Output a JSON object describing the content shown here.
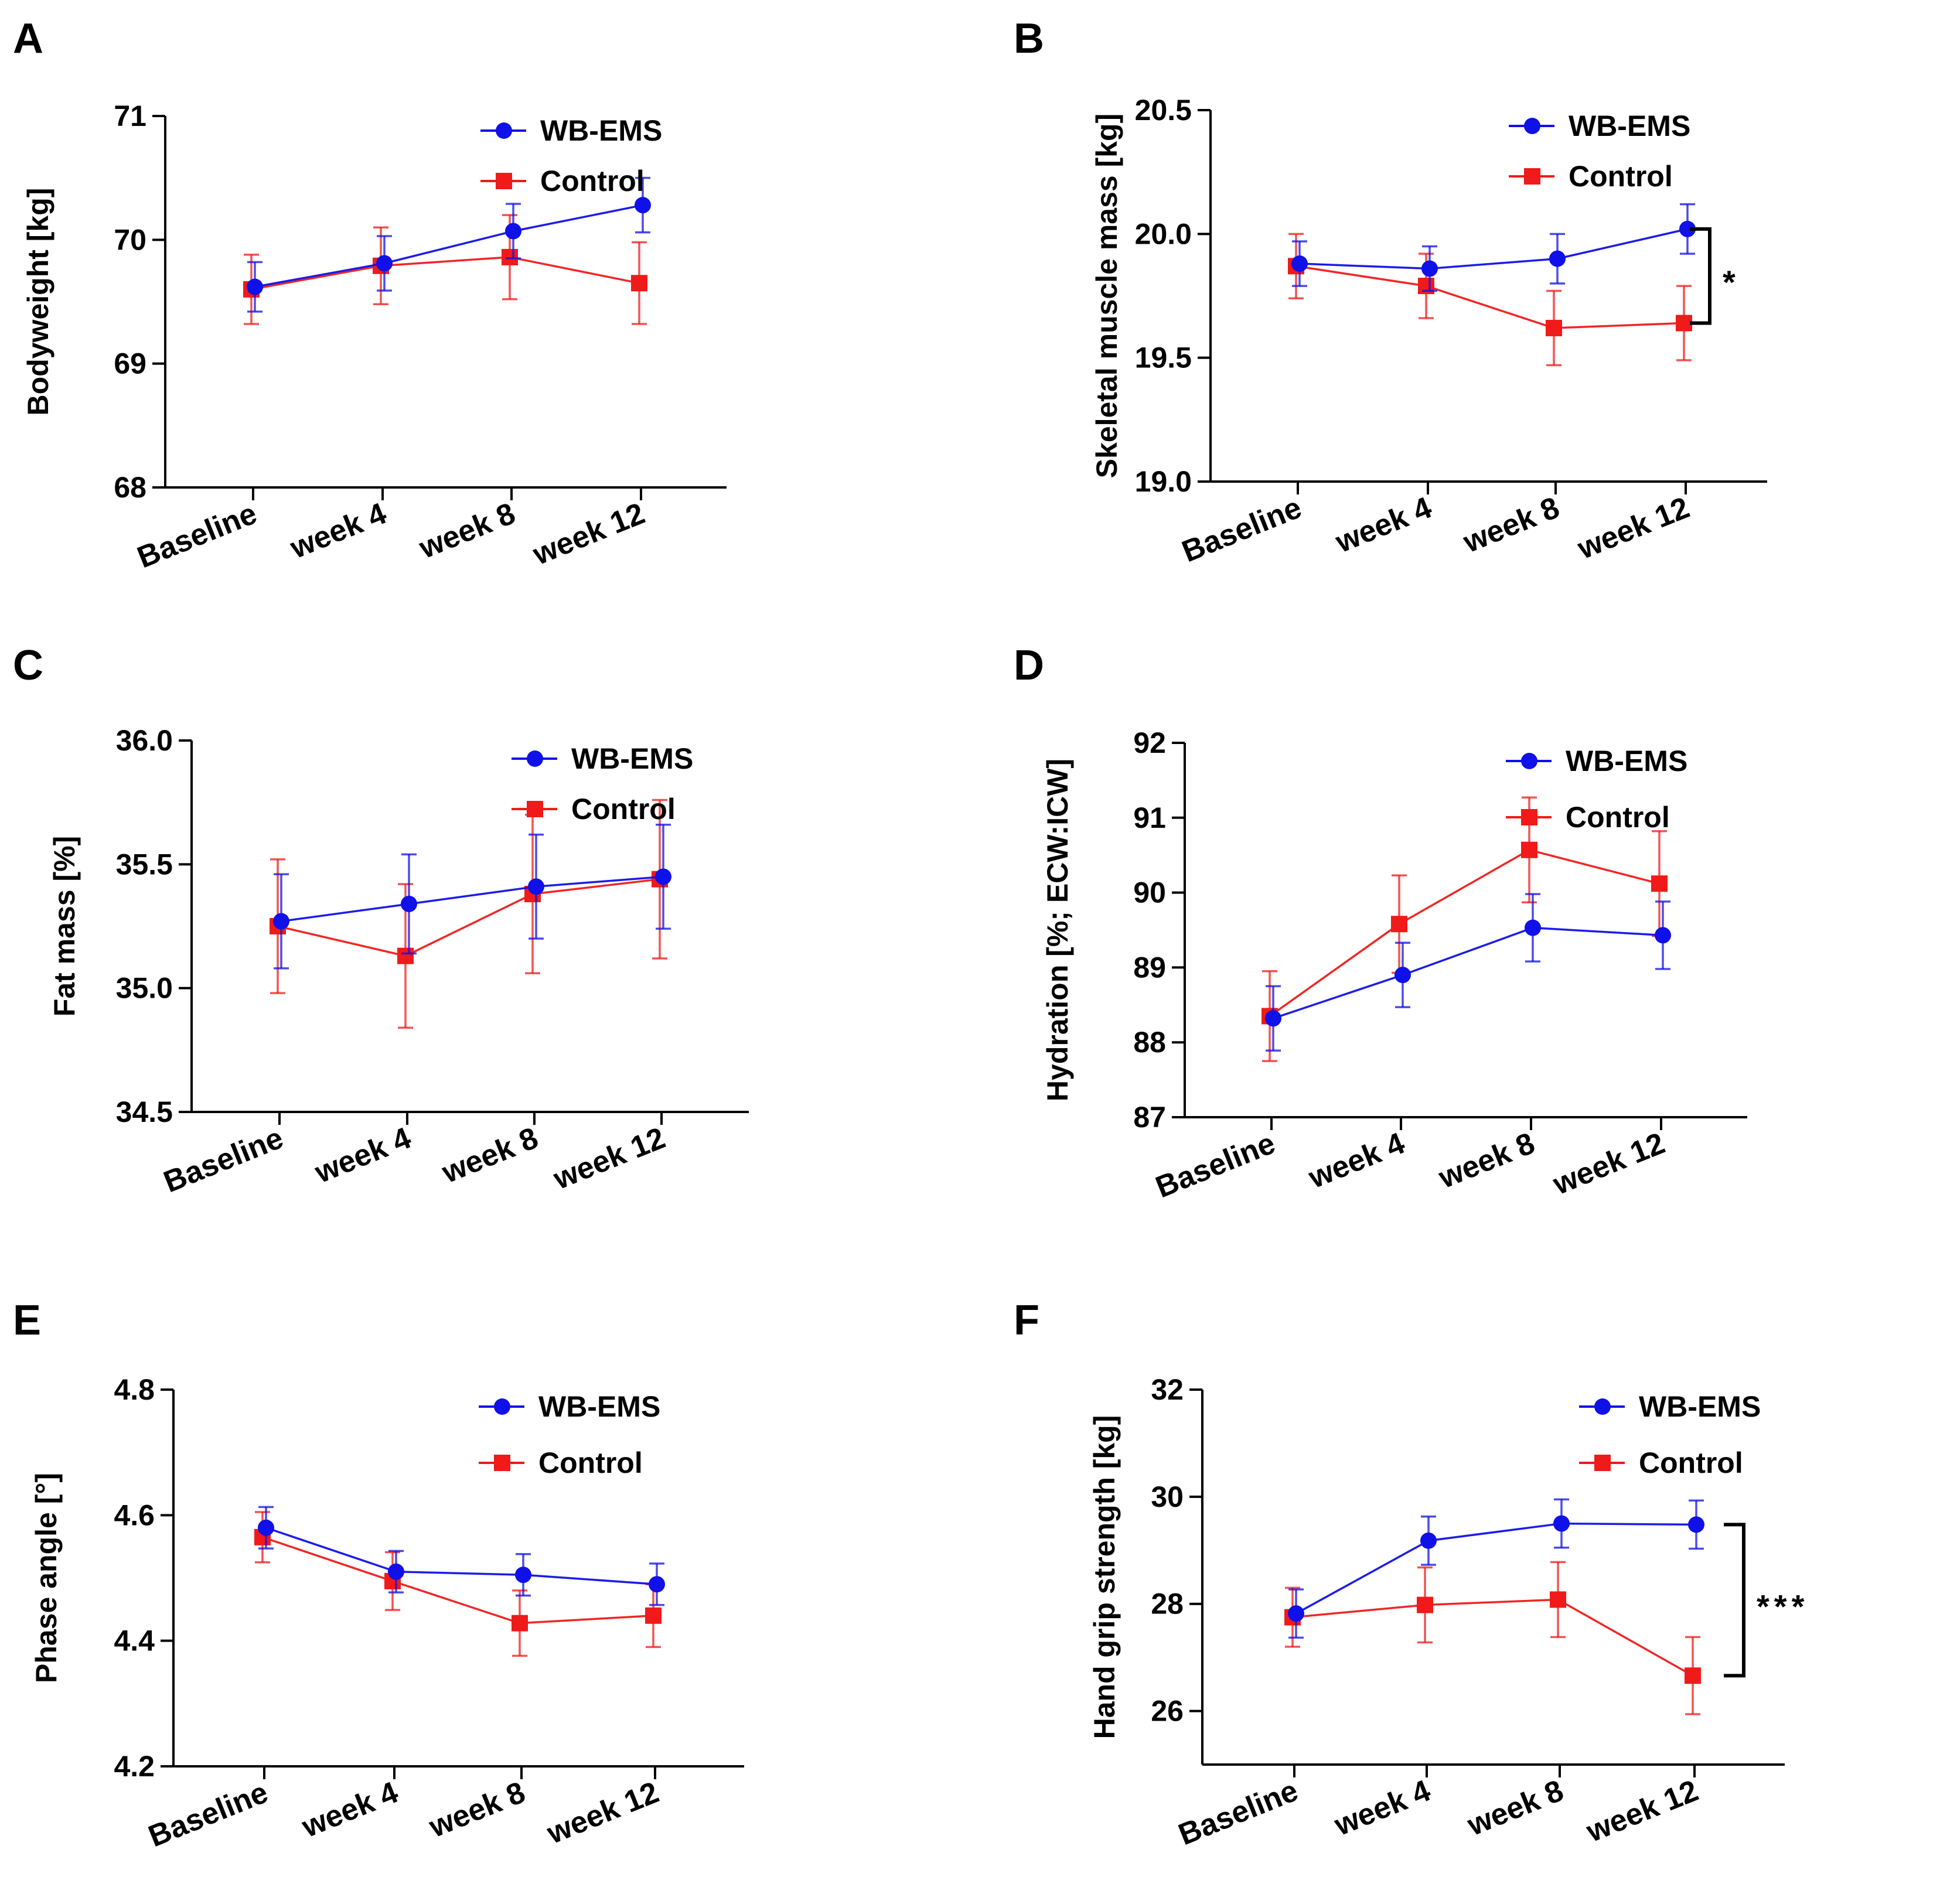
{
  "legend_symbols": {
    "WB-EMS": "circle",
    "Control": "square"
  },
  "colors": {
    "wbems": "#1010e8",
    "control": "#f01a1a",
    "axis": "#000000"
  },
  "chart_data": [
    {
      "panel": "A",
      "type": "line",
      "ylabel": "Bodyweight [kg]",
      "categories": [
        "Baseline",
        "week 4",
        "week 8",
        "week 12"
      ],
      "ylim": [
        68,
        71
      ],
      "yticks": [
        "68",
        "69",
        "70",
        "71"
      ],
      "legend_position": "top-right",
      "series": [
        {
          "name": "WB-EMS",
          "values": [
            69.62,
            69.81,
            70.07,
            70.28
          ],
          "error": [
            0.2,
            0.22,
            0.22,
            0.22
          ]
        },
        {
          "name": "Control",
          "values": [
            69.6,
            69.79,
            69.86,
            69.65
          ],
          "error": [
            0.28,
            0.31,
            0.34,
            0.33
          ]
        }
      ],
      "annotation": null
    },
    {
      "panel": "B",
      "type": "line",
      "ylabel": "Skeletal muscle mass [kg]",
      "categories": [
        "Baseline",
        "week 4",
        "week 8",
        "week 12"
      ],
      "ylim": [
        19.0,
        20.5
      ],
      "yticks": [
        "19.0",
        "19.5",
        "20.0",
        "20.5"
      ],
      "legend_position": "top-right",
      "series": [
        {
          "name": "WB-EMS",
          "values": [
            19.88,
            19.86,
            19.9,
            20.02
          ],
          "error": [
            0.09,
            0.09,
            0.1,
            0.1
          ]
        },
        {
          "name": "Control",
          "values": [
            19.87,
            19.79,
            19.62,
            19.64
          ],
          "error": [
            0.13,
            0.13,
            0.15,
            0.15
          ]
        }
      ],
      "annotation": {
        "text": "*",
        "from": 20.02,
        "to": 19.64
      }
    },
    {
      "panel": "C",
      "type": "line",
      "ylabel": "Fat mass [%]",
      "categories": [
        "Baseline",
        "week 4",
        "week 8",
        "week 12"
      ],
      "ylim": [
        34.5,
        36.0
      ],
      "yticks": [
        "34.5",
        "35.0",
        "35.5",
        "36.0"
      ],
      "legend_position": "top-right",
      "series": [
        {
          "name": "WB-EMS",
          "values": [
            35.27,
            35.34,
            35.41,
            35.45
          ],
          "error": [
            0.19,
            0.2,
            0.21,
            0.21
          ]
        },
        {
          "name": "Control",
          "values": [
            35.25,
            35.13,
            35.38,
            35.44
          ],
          "error": [
            0.27,
            0.29,
            0.32,
            0.32
          ]
        }
      ],
      "annotation": null
    },
    {
      "panel": "D",
      "type": "line",
      "ylabel": "Hydration [%; ECW:ICW]",
      "categories": [
        "Baseline",
        "week 4",
        "week 8",
        "week 12"
      ],
      "ylim": [
        87,
        92
      ],
      "yticks": [
        "87",
        "88",
        "89",
        "90",
        "91",
        "92"
      ],
      "legend_position": "top-right",
      "series": [
        {
          "name": "WB-EMS",
          "values": [
            88.32,
            88.9,
            89.53,
            89.43
          ],
          "error": [
            0.43,
            0.43,
            0.45,
            0.45
          ]
        },
        {
          "name": "Control",
          "values": [
            88.35,
            89.58,
            90.57,
            90.12
          ],
          "error": [
            0.6,
            0.65,
            0.7,
            0.7
          ]
        }
      ],
      "annotation": null
    },
    {
      "panel": "E",
      "type": "line",
      "ylabel": "Phase angle [°]",
      "categories": [
        "Baseline",
        "week 4",
        "week 8",
        "week 12"
      ],
      "ylim": [
        4.2,
        4.8
      ],
      "yticks": [
        "4.2",
        "4.4",
        "4.6",
        "4.8"
      ],
      "legend_position": "top-right",
      "series": [
        {
          "name": "WB-EMS",
          "values": [
            4.58,
            4.51,
            4.505,
            4.49
          ],
          "error": [
            0.033,
            0.033,
            0.033,
            0.033
          ]
        },
        {
          "name": "Control",
          "values": [
            4.565,
            4.495,
            4.428,
            4.44
          ],
          "error": [
            0.04,
            0.046,
            0.052,
            0.05
          ]
        }
      ],
      "annotation": null
    },
    {
      "panel": "F",
      "type": "line",
      "ylabel": "Hand grip strength [kg]",
      "categories": [
        "Baseline",
        "week 4",
        "week 8",
        "week 12"
      ],
      "ylim": [
        25,
        32
      ],
      "yticks": [
        "26",
        "28",
        "30",
        "32"
      ],
      "legend_position": "top-right",
      "series": [
        {
          "name": "WB-EMS",
          "values": [
            27.82,
            29.18,
            29.5,
            29.48
          ],
          "error": [
            0.45,
            0.45,
            0.45,
            0.45
          ]
        },
        {
          "name": "Control",
          "values": [
            27.75,
            27.98,
            28.08,
            26.66
          ],
          "error": [
            0.55,
            0.7,
            0.7,
            0.72
          ]
        }
      ],
      "annotation": {
        "text": "***",
        "from": 29.48,
        "to": 26.66
      }
    }
  ]
}
